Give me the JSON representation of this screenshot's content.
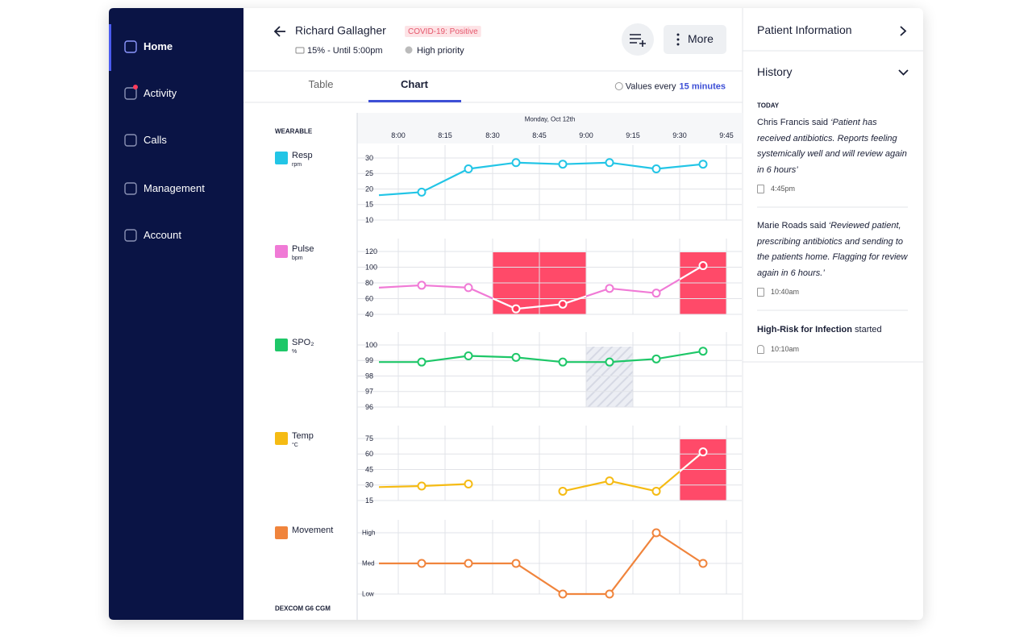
{
  "sidebar": {
    "items": [
      "Home",
      "Activity",
      "Calls",
      "Management",
      "Account"
    ],
    "active_index": 0
  },
  "header": {
    "patient_name": "Richard Gallagher",
    "status_badge": "COVID-19: Positive",
    "battery": "15% - Until 5:00pm",
    "priority": "High priority",
    "more_button": "More"
  },
  "tabs": {
    "items": [
      "Table",
      "Chart"
    ],
    "active_index": 1,
    "interval_prefix": "Values every",
    "interval": "15 minutes"
  },
  "section_labels": [
    "WEARABLE",
    "DEXCOM G6 CGM"
  ],
  "time_axis": {
    "date": "Monday, Oct 12th",
    "ticks": [
      "8:00",
      "8:15",
      "8:30",
      "8:45",
      "9:00",
      "9:15",
      "9:30",
      "9:45"
    ]
  },
  "chart_data": [
    {
      "type": "line",
      "title": "Resp",
      "unit": "rpm",
      "color": "#22c5e6",
      "ylim": [
        10,
        30
      ],
      "yticks": [
        30,
        25,
        20,
        15,
        10
      ],
      "values": [
        18,
        19,
        26.5,
        28.5,
        28,
        28.5,
        26.5,
        28
      ]
    },
    {
      "type": "line",
      "title": "Pulse",
      "unit": "bpm",
      "color": "#f07ad6",
      "ylim": [
        40,
        120
      ],
      "yticks": [
        120,
        100,
        80,
        60,
        40
      ],
      "values": [
        74,
        77,
        74,
        47,
        53,
        73,
        67,
        102
      ]
    },
    {
      "type": "line",
      "title": "SPO₂",
      "unit": "%",
      "color": "#1ec768",
      "ylim": [
        96,
        100
      ],
      "yticks": [
        100,
        99,
        98,
        97,
        96
      ],
      "values": [
        98.9,
        98.9,
        99.3,
        99.2,
        98.9,
        98.9,
        99.1,
        99.6
      ]
    },
    {
      "type": "line",
      "title": "Temp",
      "unit": "°C",
      "color": "#f5bb14",
      "ylim": [
        15,
        75
      ],
      "yticks": [
        75,
        60,
        45,
        30,
        15
      ],
      "values": [
        28,
        29,
        31,
        null,
        24,
        34,
        24,
        62
      ]
    },
    {
      "type": "line",
      "title": "Movement",
      "color": "#f0843c",
      "ylim": [
        1,
        3
      ],
      "yticks": [
        {
          "value": 3,
          "label": "High"
        },
        {
          "value": 2,
          "label": "Med"
        },
        {
          "value": 1,
          "label": "Low"
        }
      ],
      "values": [
        2,
        2,
        2,
        2,
        1,
        1,
        3,
        2
      ]
    }
  ],
  "side_panel": {
    "patient_info": "Patient Information",
    "history_title": "History",
    "day": "TODAY",
    "entries": [
      {
        "author": "Chris Francis",
        "verb": "said",
        "quote": "‘Patient has received antibiotics. Reports feeling systemically well and will review again in 6 hours’",
        "time": "4:45pm"
      },
      {
        "author": "Marie Roads",
        "verb": "said",
        "quote": "‘Reviewed patient, prescribing antibiotics and sending to the patients home. Flagging for review again in 6 hours.’",
        "time": "10:40am"
      },
      {
        "author": "High-Risk for Infection",
        "verb": "started",
        "time": "10:10am"
      }
    ]
  }
}
